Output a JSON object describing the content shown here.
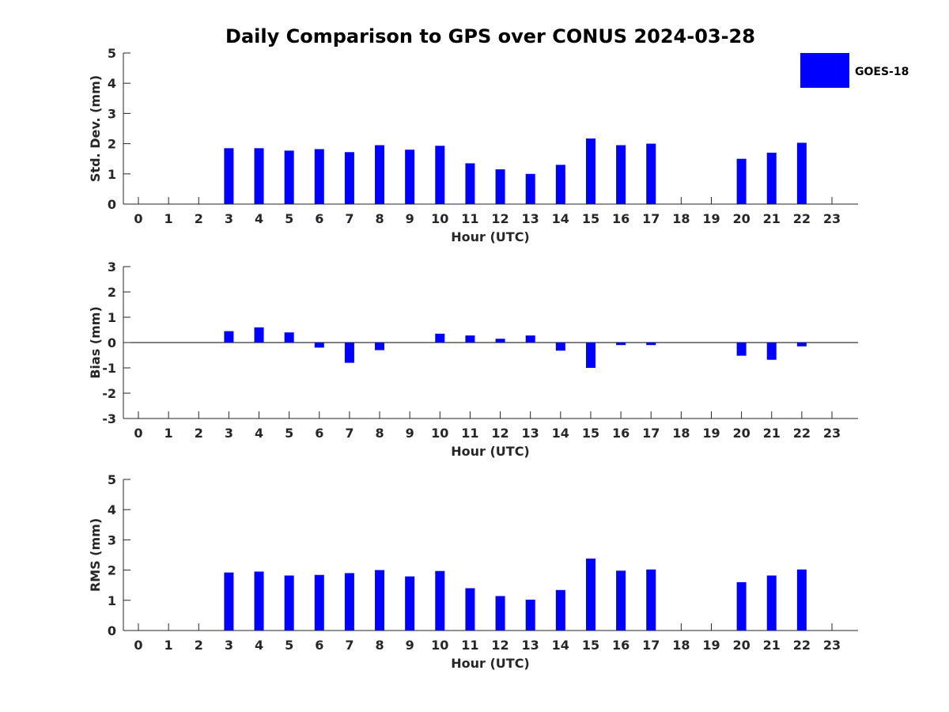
{
  "chart_data": [
    {
      "type": "bar",
      "title": "Daily Comparison to GPS over CONUS 2024-03-28",
      "xlabel": "Hour (UTC)",
      "ylabel": "Std. Dev. (mm)",
      "ylim": [
        0,
        5
      ],
      "yticks": [
        0,
        1,
        2,
        3,
        4,
        5
      ],
      "categories": [
        "0",
        "1",
        "2",
        "3",
        "4",
        "5",
        "6",
        "7",
        "8",
        "9",
        "10",
        "11",
        "12",
        "13",
        "14",
        "15",
        "16",
        "17",
        "18",
        "19",
        "20",
        "21",
        "22",
        "23"
      ],
      "series": [
        {
          "name": "GOES-18",
          "color": "#0000ff",
          "values": [
            null,
            null,
            null,
            1.85,
            1.85,
            1.77,
            1.82,
            1.72,
            1.95,
            1.8,
            1.93,
            1.35,
            1.15,
            1.0,
            1.3,
            2.17,
            1.95,
            2.0,
            null,
            null,
            1.5,
            1.7,
            2.03,
            null
          ]
        }
      ]
    },
    {
      "type": "bar",
      "xlabel": "Hour (UTC)",
      "ylabel": "Bias (mm)",
      "ylim": [
        -3,
        3
      ],
      "yticks": [
        -3,
        -2,
        -1,
        0,
        1,
        2,
        3
      ],
      "categories": [
        "0",
        "1",
        "2",
        "3",
        "4",
        "5",
        "6",
        "7",
        "8",
        "9",
        "10",
        "11",
        "12",
        "13",
        "14",
        "15",
        "16",
        "17",
        "18",
        "19",
        "20",
        "21",
        "22",
        "23"
      ],
      "series": [
        {
          "name": "GOES-18",
          "color": "#0000ff",
          "values": [
            null,
            null,
            null,
            0.45,
            0.6,
            0.4,
            -0.2,
            -0.8,
            -0.3,
            null,
            0.35,
            0.28,
            0.15,
            0.28,
            -0.32,
            -1.0,
            -0.1,
            -0.1,
            null,
            null,
            -0.52,
            -0.68,
            -0.15,
            null
          ]
        }
      ]
    },
    {
      "type": "bar",
      "xlabel": "Hour (UTC)",
      "ylabel": "RMS (mm)",
      "ylim": [
        0,
        5
      ],
      "yticks": [
        0,
        1,
        2,
        3,
        4,
        5
      ],
      "categories": [
        "0",
        "1",
        "2",
        "3",
        "4",
        "5",
        "6",
        "7",
        "8",
        "9",
        "10",
        "11",
        "12",
        "13",
        "14",
        "15",
        "16",
        "17",
        "18",
        "19",
        "20",
        "21",
        "22",
        "23"
      ],
      "series": [
        {
          "name": "GOES-18",
          "color": "#0000ff",
          "values": [
            null,
            null,
            null,
            1.92,
            1.95,
            1.82,
            1.84,
            1.9,
            2.0,
            1.79,
            1.97,
            1.4,
            1.14,
            1.02,
            1.34,
            2.38,
            1.98,
            2.02,
            null,
            null,
            1.6,
            1.82,
            2.02,
            null
          ]
        }
      ]
    }
  ],
  "legend": {
    "label": "GOES-18",
    "color": "#0000ff",
    "position": "top-right"
  }
}
